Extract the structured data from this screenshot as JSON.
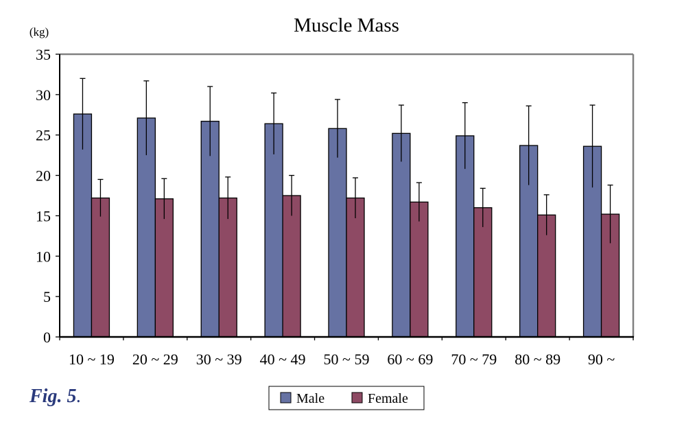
{
  "figure_label": "Fig. 5",
  "figure_label_suffix": ".",
  "colors": {
    "male": "#6672a3",
    "female": "#8e4a64",
    "axis": "#000000",
    "frame": "#808080"
  },
  "chart_data": {
    "type": "bar",
    "title": "Muscle Mass",
    "ylabel": "(kg)",
    "xlabel": "",
    "ylim": [
      0,
      35
    ],
    "yticks": [
      0,
      5,
      10,
      15,
      20,
      25,
      30,
      35
    ],
    "categories": [
      "10 ~ 19",
      "20 ~ 29",
      "30 ~ 39",
      "40 ~ 49",
      "50 ~ 59",
      "60 ~ 69",
      "70 ~ 79",
      "80 ~ 89",
      "90 ~"
    ],
    "series": [
      {
        "name": "Male",
        "values": [
          27.6,
          27.1,
          26.7,
          26.4,
          25.8,
          25.2,
          24.9,
          23.7,
          23.6
        ],
        "error": [
          4.4,
          4.6,
          4.3,
          3.8,
          3.6,
          3.5,
          4.1,
          4.9,
          5.1
        ]
      },
      {
        "name": "Female",
        "values": [
          17.2,
          17.1,
          17.2,
          17.5,
          17.2,
          16.7,
          16.0,
          15.1,
          15.2
        ],
        "error": [
          2.3,
          2.5,
          2.6,
          2.5,
          2.5,
          2.4,
          2.4,
          2.5,
          3.6
        ]
      }
    ],
    "legend_position": "bottom-center"
  }
}
